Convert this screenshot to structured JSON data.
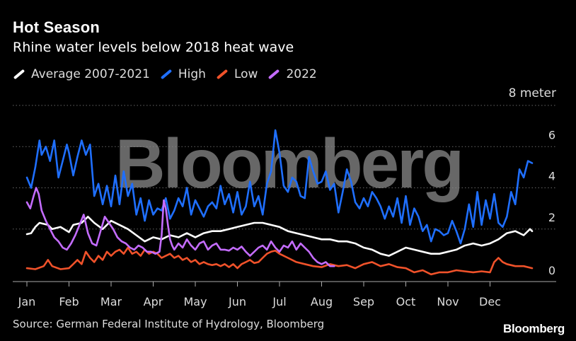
{
  "colors": {
    "avg": "#ffffff",
    "high": "#1f6fff",
    "low": "#f0522a",
    "y2022": "#c46cff",
    "grid": "#666666",
    "watermark": "#8a8a8a"
  },
  "watermark": "Bloomberg",
  "footer": {
    "source": "Source: German Federal Institute of Hydrology, Bloomberg",
    "brand": "Bloomberg"
  },
  "chart_data": {
    "type": "line",
    "title": "Hot Season",
    "subtitle": "Rhine water levels below 2018 heat wave",
    "unit_label": "8 meter",
    "ylim": [
      0,
      8
    ],
    "yticks": [
      0,
      2,
      4,
      6,
      8
    ],
    "ytick_labels": [
      "0",
      "2",
      "4",
      "6",
      ""
    ],
    "xlim": [
      0,
      12
    ],
    "months": [
      "Jan",
      "Feb",
      "Mar",
      "Apr",
      "May",
      "Jun",
      "Jul",
      "Aug",
      "Sep",
      "Oct",
      "Nov",
      "Dec"
    ],
    "legend_position": "top-left",
    "series": [
      {
        "name": "Average 2007-2021",
        "key": "avg",
        "x": [
          0,
          0.1,
          0.2,
          0.3,
          0.5,
          0.6,
          0.8,
          1.0,
          1.1,
          1.3,
          1.45,
          1.6,
          1.8,
          2.0,
          2.2,
          2.4,
          2.6,
          2.8,
          3.0,
          3.2,
          3.4,
          3.6,
          3.8,
          4.0,
          4.2,
          4.4,
          4.6,
          4.8,
          5.0,
          5.2,
          5.4,
          5.6,
          5.8,
          6.0,
          6.2,
          6.4,
          6.6,
          6.8,
          7.0,
          7.2,
          7.4,
          7.6,
          7.8,
          8.0,
          8.2,
          8.4,
          8.6,
          8.8,
          9.0,
          9.2,
          9.4,
          9.6,
          9.8,
          10.0,
          10.2,
          10.4,
          10.6,
          10.8,
          11.0,
          11.2,
          11.4,
          11.6,
          11.8,
          11.95,
          12.0
        ],
        "values": [
          1.75,
          1.8,
          2.1,
          2.3,
          2.2,
          2.0,
          2.1,
          1.85,
          2.2,
          2.3,
          2.6,
          2.3,
          2.0,
          2.4,
          2.2,
          2.0,
          1.7,
          1.4,
          1.6,
          1.5,
          1.7,
          1.6,
          1.8,
          1.6,
          1.8,
          1.9,
          1.9,
          2.0,
          2.1,
          2.2,
          2.3,
          2.3,
          2.2,
          2.1,
          1.9,
          1.8,
          1.7,
          1.6,
          1.5,
          1.5,
          1.4,
          1.4,
          1.3,
          1.1,
          1.0,
          0.8,
          0.7,
          0.9,
          1.1,
          1.0,
          0.9,
          0.8,
          0.8,
          0.9,
          1.0,
          1.2,
          1.3,
          1.2,
          1.3,
          1.5,
          1.8,
          1.9,
          1.7,
          2.0,
          1.9
        ]
      },
      {
        "name": "High",
        "key": "high",
        "x": [
          0,
          0.1,
          0.2,
          0.3,
          0.35,
          0.45,
          0.55,
          0.65,
          0.75,
          0.85,
          0.95,
          1.0,
          1.1,
          1.2,
          1.3,
          1.4,
          1.5,
          1.6,
          1.7,
          1.8,
          1.9,
          2.0,
          2.1,
          2.2,
          2.3,
          2.4,
          2.5,
          2.6,
          2.7,
          2.8,
          2.9,
          3.0,
          3.1,
          3.2,
          3.3,
          3.4,
          3.5,
          3.6,
          3.7,
          3.8,
          3.9,
          4.0,
          4.1,
          4.2,
          4.3,
          4.4,
          4.5,
          4.6,
          4.7,
          4.8,
          4.9,
          5.0,
          5.1,
          5.2,
          5.3,
          5.4,
          5.5,
          5.6,
          5.7,
          5.8,
          5.9,
          6.0,
          6.1,
          6.2,
          6.3,
          6.4,
          6.5,
          6.6,
          6.7,
          6.8,
          6.9,
          7.0,
          7.1,
          7.2,
          7.3,
          7.4,
          7.5,
          7.6,
          7.7,
          7.8,
          7.9,
          8.0,
          8.1,
          8.2,
          8.3,
          8.4,
          8.5,
          8.6,
          8.7,
          8.8,
          8.9,
          9.0,
          9.1,
          9.2,
          9.3,
          9.4,
          9.5,
          9.6,
          9.7,
          9.8,
          9.9,
          10.0,
          10.1,
          10.2,
          10.3,
          10.4,
          10.5,
          10.6,
          10.7,
          10.8,
          10.9,
          11.0,
          11.1,
          11.2,
          11.3,
          11.4,
          11.5,
          11.6,
          11.7,
          11.8,
          11.9,
          12.0
        ],
        "values": [
          4.5,
          4.0,
          5.0,
          6.3,
          5.6,
          6.0,
          5.3,
          6.3,
          4.5,
          5.3,
          6.1,
          5.7,
          4.6,
          5.5,
          6.3,
          5.6,
          6.1,
          3.6,
          4.2,
          3.2,
          4.1,
          3.1,
          4.6,
          3.2,
          4.8,
          3.6,
          4.2,
          2.7,
          3.5,
          2.4,
          3.4,
          2.7,
          3.0,
          2.9,
          3.5,
          2.5,
          2.9,
          3.5,
          3.1,
          4.0,
          2.7,
          3.4,
          3.0,
          2.6,
          3.1,
          3.3,
          3.0,
          4.1,
          3.2,
          3.7,
          2.8,
          3.8,
          2.7,
          3.1,
          4.3,
          3.1,
          3.6,
          2.7,
          4.2,
          4.8,
          6.8,
          5.7,
          4.1,
          3.8,
          4.5,
          4.3,
          3.6,
          3.5,
          5.5,
          4.8,
          4.2,
          4.3,
          4.8,
          3.9,
          4.2,
          2.8,
          3.8,
          4.9,
          4.3,
          3.3,
          3.0,
          3.5,
          3.1,
          3.8,
          3.5,
          3.1,
          2.5,
          3.1,
          2.6,
          3.5,
          2.3,
          3.6,
          2.2,
          3.0,
          2.6,
          1.9,
          2.2,
          1.4,
          2.0,
          1.9,
          1.7,
          1.8,
          2.4,
          1.9,
          1.3,
          2.0,
          3.2,
          2.1,
          3.8,
          2.2,
          3.4,
          2.5,
          3.7,
          2.3,
          2.1,
          2.6,
          3.8,
          3.2,
          4.9,
          4.5,
          5.3,
          5.2
        ],
        "dx_offset": 0
      },
      {
        "name": "Low",
        "key": "low",
        "x": [
          0,
          0.2,
          0.4,
          0.5,
          0.6,
          0.8,
          1.0,
          1.1,
          1.2,
          1.3,
          1.4,
          1.5,
          1.6,
          1.7,
          1.8,
          1.9,
          2.0,
          2.1,
          2.2,
          2.3,
          2.4,
          2.5,
          2.6,
          2.7,
          2.8,
          2.9,
          3.0,
          3.1,
          3.2,
          3.3,
          3.4,
          3.5,
          3.6,
          3.7,
          3.8,
          3.9,
          4.0,
          4.1,
          4.2,
          4.3,
          4.4,
          4.5,
          4.6,
          4.7,
          4.8,
          4.9,
          5.0,
          5.1,
          5.2,
          5.3,
          5.4,
          5.5,
          5.6,
          5.7,
          5.8,
          5.9,
          6.0,
          6.1,
          6.2,
          6.4,
          6.6,
          6.8,
          7.0,
          7.2,
          7.4,
          7.6,
          7.8,
          8.0,
          8.2,
          8.4,
          8.6,
          8.8,
          9.0,
          9.2,
          9.4,
          9.6,
          9.8,
          10.0,
          10.2,
          10.4,
          10.6,
          10.8,
          11.0,
          11.1,
          11.2,
          11.3,
          11.4,
          11.6,
          11.8,
          12.0
        ],
        "values": [
          0.1,
          0.05,
          0.2,
          0.5,
          0.2,
          0.05,
          0.1,
          0.3,
          0.5,
          0.3,
          0.9,
          0.6,
          0.4,
          0.7,
          0.5,
          0.9,
          0.7,
          0.9,
          1.0,
          0.8,
          1.1,
          0.8,
          0.9,
          0.7,
          1.0,
          0.8,
          0.9,
          0.8,
          0.6,
          0.7,
          0.8,
          0.6,
          0.7,
          0.5,
          0.6,
          0.4,
          0.5,
          0.3,
          0.4,
          0.3,
          0.25,
          0.3,
          0.2,
          0.3,
          0.15,
          0.3,
          0.1,
          0.3,
          0.4,
          0.5,
          0.35,
          0.4,
          0.6,
          0.8,
          0.9,
          0.95,
          0.8,
          0.7,
          0.6,
          0.4,
          0.3,
          0.2,
          0.15,
          0.3,
          0.2,
          0.25,
          0.1,
          0.3,
          0.4,
          0.2,
          0.3,
          0.15,
          0.1,
          -0.1,
          0.0,
          -0.2,
          -0.1,
          -0.1,
          0.0,
          -0.05,
          -0.1,
          -0.05,
          -0.1,
          0.4,
          0.6,
          0.4,
          0.3,
          0.2,
          0.2,
          0.1
        ]
      },
      {
        "name": "2022",
        "key": "y2022",
        "x": [
          0,
          0.08,
          0.16,
          0.22,
          0.28,
          0.35,
          0.45,
          0.55,
          0.65,
          0.75,
          0.85,
          0.95,
          1.05,
          1.15,
          1.25,
          1.35,
          1.45,
          1.55,
          1.65,
          1.75,
          1.85,
          1.95,
          2.05,
          2.15,
          2.25,
          2.35,
          2.45,
          2.55,
          2.65,
          2.75,
          2.85,
          2.95,
          3.05,
          3.15,
          3.2,
          3.25,
          3.3,
          3.35,
          3.4,
          3.45,
          3.5,
          3.6,
          3.7,
          3.8,
          3.9,
          4.0,
          4.1,
          4.2,
          4.3,
          4.4,
          4.5,
          4.6,
          4.7,
          4.8,
          4.9,
          5.0,
          5.1,
          5.2,
          5.3,
          5.4,
          5.5,
          5.6,
          5.7,
          5.8,
          5.9,
          6.0,
          6.1,
          6.2,
          6.3,
          6.4,
          6.5,
          6.6,
          6.7,
          6.8,
          6.9,
          7.0,
          7.1,
          7.2,
          7.3
        ],
        "values": [
          3.3,
          3.0,
          3.6,
          4.0,
          3.7,
          2.9,
          2.4,
          2.0,
          1.6,
          1.4,
          1.1,
          1.0,
          1.3,
          1.7,
          2.2,
          2.7,
          1.8,
          1.3,
          1.2,
          1.9,
          2.6,
          2.3,
          2.0,
          1.6,
          1.4,
          1.3,
          1.1,
          1.0,
          1.2,
          1.1,
          0.9,
          0.9,
          0.8,
          0.9,
          1.7,
          3.4,
          3.0,
          2.2,
          1.5,
          1.2,
          1.0,
          1.3,
          1.1,
          1.5,
          1.2,
          1.0,
          1.3,
          1.4,
          1.0,
          1.2,
          1.3,
          1.0,
          1.0,
          0.95,
          1.1,
          1.0,
          1.15,
          0.9,
          0.7,
          0.9,
          1.1,
          1.2,
          1.0,
          1.4,
          1.1,
          0.9,
          1.2,
          1.1,
          1.4,
          1.0,
          1.3,
          1.1,
          0.9,
          0.6,
          0.4,
          0.3,
          0.4,
          0.2,
          0.2
        ]
      }
    ]
  }
}
